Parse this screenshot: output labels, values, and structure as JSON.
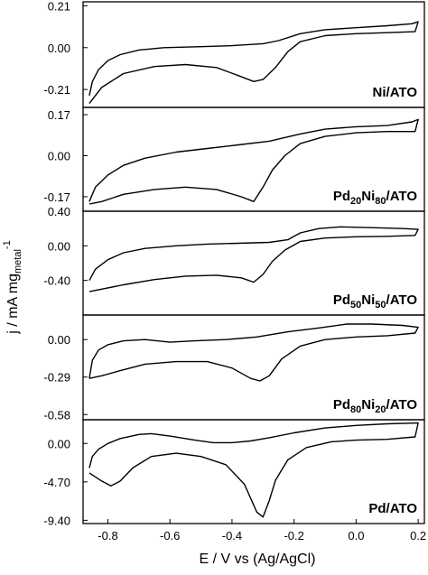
{
  "chart_data": {
    "type": "line",
    "xlabel": "E / V vs (Ag/AgCl)",
    "ylabel": "j / mA mg",
    "ylabel_sub": "metal",
    "ylabel_sup": "-1",
    "xlim": [
      -0.88,
      0.22
    ],
    "xticks": [
      {
        "v": -0.8,
        "label": "-0.8"
      },
      {
        "v": -0.6,
        "label": "-0.6"
      },
      {
        "v": -0.4,
        "label": "-0.4"
      },
      {
        "v": -0.2,
        "label": "-0.2"
      },
      {
        "v": 0.0,
        "label": "0.0"
      },
      {
        "v": 0.2,
        "label": "0.2"
      }
    ],
    "panels": [
      {
        "label": "Ni/ATO",
        "label_parts": [
          {
            "t": "Ni/ATO",
            "s": ""
          }
        ],
        "ylim": [
          -0.3,
          0.23
        ],
        "yticks": [
          {
            "v": 0.21,
            "label": "0.21"
          },
          {
            "v": 0.0,
            "label": "0.00"
          },
          {
            "v": -0.21,
            "label": "-0.21"
          }
        ],
        "forward": [
          [
            -0.86,
            -0.24
          ],
          [
            -0.85,
            -0.17
          ],
          [
            -0.83,
            -0.11
          ],
          [
            -0.8,
            -0.065
          ],
          [
            -0.76,
            -0.035
          ],
          [
            -0.7,
            -0.012
          ],
          [
            -0.62,
            0.0
          ],
          [
            -0.5,
            0.005
          ],
          [
            -0.4,
            0.01
          ],
          [
            -0.3,
            0.02
          ],
          [
            -0.25,
            0.035
          ],
          [
            -0.18,
            0.07
          ],
          [
            -0.1,
            0.09
          ],
          [
            0.0,
            0.1
          ],
          [
            0.1,
            0.11
          ],
          [
            0.18,
            0.12
          ],
          [
            0.2,
            0.13
          ]
        ],
        "reverse": [
          [
            0.2,
            0.13
          ],
          [
            0.19,
            0.08
          ],
          [
            0.1,
            0.075
          ],
          [
            0.0,
            0.07
          ],
          [
            -0.1,
            0.06
          ],
          [
            -0.18,
            0.03
          ],
          [
            -0.22,
            -0.02
          ],
          [
            -0.26,
            -0.1
          ],
          [
            -0.3,
            -0.16
          ],
          [
            -0.33,
            -0.17
          ],
          [
            -0.38,
            -0.14
          ],
          [
            -0.45,
            -0.1
          ],
          [
            -0.55,
            -0.085
          ],
          [
            -0.65,
            -0.095
          ],
          [
            -0.75,
            -0.13
          ],
          [
            -0.82,
            -0.2
          ],
          [
            -0.86,
            -0.28
          ]
        ]
      },
      {
        "label": "Pd20Ni80/ATO",
        "label_parts": [
          {
            "t": "Pd",
            "s": ""
          },
          {
            "t": "20",
            "s": "sub"
          },
          {
            "t": "Ni",
            "s": ""
          },
          {
            "t": "80",
            "s": "sub"
          },
          {
            "t": "/ATO",
            "s": ""
          }
        ],
        "ylim": [
          -0.23,
          0.2
        ],
        "yticks": [
          {
            "v": 0.17,
            "label": "0.17"
          },
          {
            "v": 0.0,
            "label": "0.00"
          },
          {
            "v": -0.17,
            "label": "-0.17"
          }
        ],
        "forward": [
          [
            -0.86,
            -0.19
          ],
          [
            -0.84,
            -0.13
          ],
          [
            -0.8,
            -0.08
          ],
          [
            -0.75,
            -0.04
          ],
          [
            -0.68,
            -0.01
          ],
          [
            -0.58,
            0.015
          ],
          [
            -0.48,
            0.03
          ],
          [
            -0.38,
            0.045
          ],
          [
            -0.28,
            0.06
          ],
          [
            -0.18,
            0.09
          ],
          [
            -0.1,
            0.11
          ],
          [
            0.0,
            0.12
          ],
          [
            0.1,
            0.125
          ],
          [
            0.18,
            0.14
          ],
          [
            0.2,
            0.15
          ]
        ],
        "reverse": [
          [
            0.2,
            0.15
          ],
          [
            0.19,
            0.1
          ],
          [
            0.1,
            0.1
          ],
          [
            0.0,
            0.095
          ],
          [
            -0.1,
            0.08
          ],
          [
            -0.18,
            0.05
          ],
          [
            -0.23,
            0.0
          ],
          [
            -0.27,
            -0.06
          ],
          [
            -0.3,
            -0.13
          ],
          [
            -0.33,
            -0.19
          ],
          [
            -0.37,
            -0.17
          ],
          [
            -0.45,
            -0.14
          ],
          [
            -0.55,
            -0.13
          ],
          [
            -0.65,
            -0.14
          ],
          [
            -0.75,
            -0.16
          ],
          [
            -0.82,
            -0.19
          ],
          [
            -0.86,
            -0.2
          ]
        ]
      },
      {
        "label": "Pd50Ni50/ATO",
        "label_parts": [
          {
            "t": "Pd",
            "s": ""
          },
          {
            "t": "50",
            "s": "sub"
          },
          {
            "t": "Ni",
            "s": ""
          },
          {
            "t": "50",
            "s": "sub"
          },
          {
            "t": "/ATO",
            "s": ""
          }
        ],
        "ylim": [
          -0.8,
          0.4
        ],
        "yticks": [
          {
            "v": 0.4,
            "label": "0.40"
          },
          {
            "v": 0.0,
            "label": "0.00"
          },
          {
            "v": -0.4,
            "label": "-0.40"
          }
        ],
        "forward": [
          [
            -0.86,
            -0.4
          ],
          [
            -0.84,
            -0.27
          ],
          [
            -0.8,
            -0.16
          ],
          [
            -0.75,
            -0.08
          ],
          [
            -0.68,
            -0.03
          ],
          [
            -0.58,
            0.0
          ],
          [
            -0.48,
            0.02
          ],
          [
            -0.38,
            0.03
          ],
          [
            -0.28,
            0.04
          ],
          [
            -0.22,
            0.07
          ],
          [
            -0.18,
            0.15
          ],
          [
            -0.12,
            0.2
          ],
          [
            -0.05,
            0.22
          ],
          [
            0.05,
            0.21
          ],
          [
            0.15,
            0.2
          ],
          [
            0.2,
            0.19
          ]
        ],
        "reverse": [
          [
            0.2,
            0.19
          ],
          [
            0.19,
            0.12
          ],
          [
            0.1,
            0.11
          ],
          [
            0.0,
            0.105
          ],
          [
            -0.1,
            0.09
          ],
          [
            -0.18,
            0.05
          ],
          [
            -0.23,
            -0.05
          ],
          [
            -0.27,
            -0.18
          ],
          [
            -0.3,
            -0.33
          ],
          [
            -0.33,
            -0.42
          ],
          [
            -0.37,
            -0.37
          ],
          [
            -0.45,
            -0.34
          ],
          [
            -0.55,
            -0.35
          ],
          [
            -0.65,
            -0.39
          ],
          [
            -0.75,
            -0.45
          ],
          [
            -0.82,
            -0.5
          ],
          [
            -0.86,
            -0.53
          ]
        ]
      },
      {
        "label": "Pd80Ni20/ATO",
        "label_parts": [
          {
            "t": "Pd",
            "s": ""
          },
          {
            "t": "80",
            "s": "sub"
          },
          {
            "t": "Ni",
            "s": ""
          },
          {
            "t": "20",
            "s": "sub"
          },
          {
            "t": "/ATO",
            "s": ""
          }
        ],
        "ylim": [
          -0.62,
          0.19
        ],
        "yticks": [
          {
            "v": 0.0,
            "label": "0.00"
          },
          {
            "v": -0.29,
            "label": "-0.29"
          },
          {
            "v": -0.58,
            "label": "-0.58"
          }
        ],
        "forward": [
          [
            -0.86,
            -0.3
          ],
          [
            -0.85,
            -0.16
          ],
          [
            -0.83,
            -0.08
          ],
          [
            -0.8,
            -0.04
          ],
          [
            -0.75,
            -0.01
          ],
          [
            -0.68,
            0.0
          ],
          [
            -0.6,
            -0.02
          ],
          [
            -0.52,
            -0.01
          ],
          [
            -0.42,
            0.0
          ],
          [
            -0.32,
            0.02
          ],
          [
            -0.22,
            0.06
          ],
          [
            -0.12,
            0.09
          ],
          [
            -0.03,
            0.12
          ],
          [
            0.05,
            0.12
          ],
          [
            0.15,
            0.11
          ],
          [
            0.2,
            0.095
          ]
        ],
        "reverse": [
          [
            0.2,
            0.095
          ],
          [
            0.19,
            0.05
          ],
          [
            0.1,
            0.03
          ],
          [
            0.0,
            0.02
          ],
          [
            -0.1,
            0.0
          ],
          [
            -0.18,
            -0.05
          ],
          [
            -0.24,
            -0.15
          ],
          [
            -0.28,
            -0.28
          ],
          [
            -0.31,
            -0.32
          ],
          [
            -0.34,
            -0.3
          ],
          [
            -0.4,
            -0.22
          ],
          [
            -0.48,
            -0.17
          ],
          [
            -0.58,
            -0.17
          ],
          [
            -0.68,
            -0.19
          ],
          [
            -0.76,
            -0.24
          ],
          [
            -0.82,
            -0.28
          ],
          [
            -0.86,
            -0.3
          ]
        ]
      },
      {
        "label": "Pd/ATO",
        "label_parts": [
          {
            "t": "Pd/ATO",
            "s": ""
          }
        ],
        "ylim": [
          -9.8,
          2.9
        ],
        "yticks": [
          {
            "v": 0.0,
            "label": "0.00"
          },
          {
            "v": -4.7,
            "label": "-4.70"
          },
          {
            "v": -9.4,
            "label": "-9.40"
          }
        ],
        "forward": [
          [
            -0.86,
            -3.0
          ],
          [
            -0.85,
            -1.6
          ],
          [
            -0.83,
            -0.7
          ],
          [
            -0.8,
            0.0
          ],
          [
            -0.76,
            0.6
          ],
          [
            -0.7,
            1.1
          ],
          [
            -0.66,
            1.2
          ],
          [
            -0.6,
            0.9
          ],
          [
            -0.52,
            0.4
          ],
          [
            -0.46,
            0.1
          ],
          [
            -0.4,
            0.1
          ],
          [
            -0.34,
            0.3
          ],
          [
            -0.28,
            0.7
          ],
          [
            -0.2,
            1.3
          ],
          [
            -0.1,
            1.9
          ],
          [
            0.0,
            2.2
          ],
          [
            0.1,
            2.4
          ],
          [
            0.2,
            2.5
          ]
        ],
        "reverse": [
          [
            0.2,
            2.5
          ],
          [
            0.19,
            0.8
          ],
          [
            0.1,
            0.5
          ],
          [
            0.0,
            0.4
          ],
          [
            -0.08,
            0.2
          ],
          [
            -0.16,
            -0.5
          ],
          [
            -0.22,
            -2.0
          ],
          [
            -0.26,
            -4.5
          ],
          [
            -0.28,
            -7.0
          ],
          [
            -0.3,
            -9.0
          ],
          [
            -0.32,
            -8.4
          ],
          [
            -0.36,
            -5.0
          ],
          [
            -0.42,
            -2.6
          ],
          [
            -0.5,
            -1.6
          ],
          [
            -0.58,
            -1.2
          ],
          [
            -0.66,
            -1.6
          ],
          [
            -0.72,
            -3.0
          ],
          [
            -0.76,
            -4.6
          ],
          [
            -0.79,
            -5.2
          ],
          [
            -0.82,
            -4.6
          ],
          [
            -0.86,
            -3.6
          ]
        ]
      }
    ]
  }
}
